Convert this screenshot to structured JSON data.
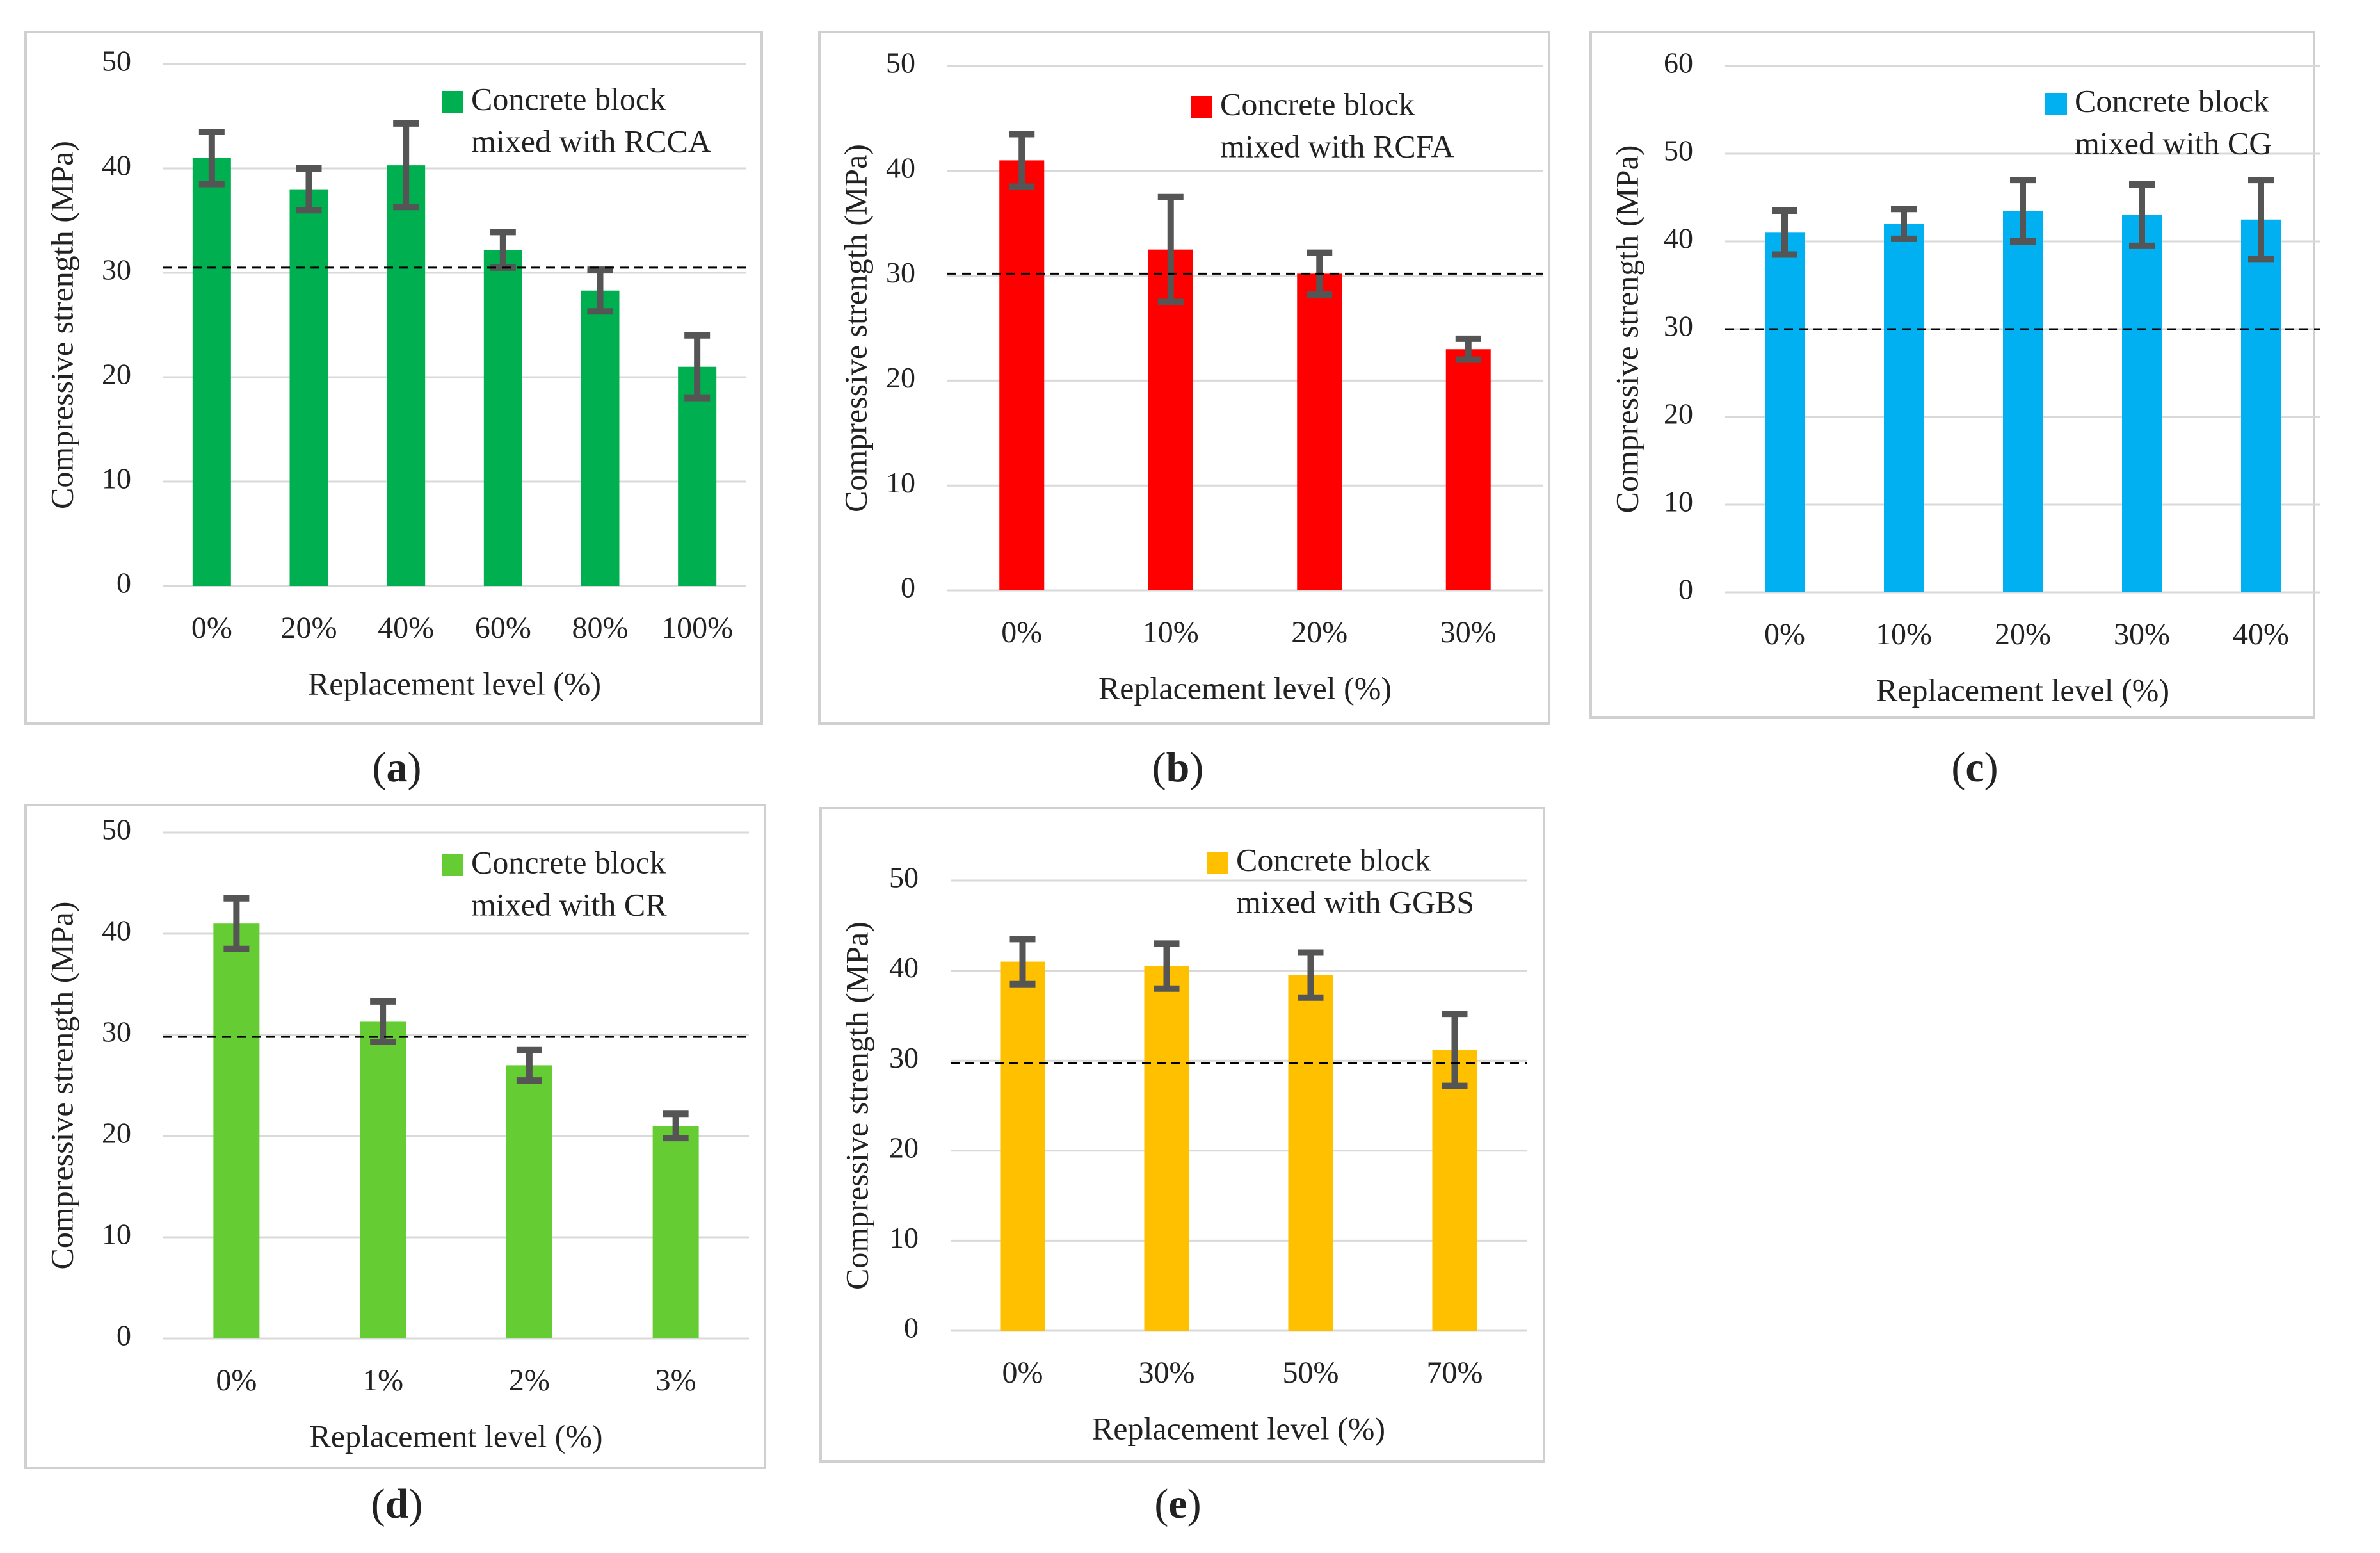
{
  "chart_data": [
    {
      "type": "bar",
      "panel_label": "a",
      "categories": [
        "0%",
        "20%",
        "40%",
        "60%",
        "80%",
        "100%"
      ],
      "values": [
        41,
        38,
        40.3,
        32.2,
        28.3,
        21
      ],
      "errors": [
        2.5,
        2,
        4,
        1.7,
        2,
        3
      ],
      "threshold": 30.5,
      "legend": [
        "Concrete block",
        "mixed with RCCA"
      ],
      "xlabel": "Replacement level (%)",
      "ylabel": "Compressive strength (MPa)",
      "ylim": [
        0,
        50
      ],
      "yticks": [
        0,
        10,
        20,
        30,
        40,
        50
      ],
      "color": "#00b050",
      "grid": true,
      "legend_position": "top-right"
    },
    {
      "type": "bar",
      "panel_label": "b",
      "categories": [
        "0%",
        "10%",
        "20%",
        "30%"
      ],
      "values": [
        41,
        32.5,
        30.2,
        23
      ],
      "errors": [
        2.5,
        5,
        2,
        1
      ],
      "threshold": 30.2,
      "legend": [
        "Concrete block",
        "mixed with RCFA"
      ],
      "xlabel": "Replacement level (%)",
      "ylabel": "Compressive strength (MPa)",
      "ylim": [
        0,
        50
      ],
      "yticks": [
        0,
        10,
        20,
        30,
        40,
        50
      ],
      "color": "#ff0000",
      "grid": true,
      "legend_position": "top-right"
    },
    {
      "type": "bar",
      "panel_label": "c",
      "categories": [
        "0%",
        "10%",
        "20%",
        "30%",
        "40%"
      ],
      "values": [
        41,
        42,
        43.5,
        43,
        42.5
      ],
      "errors": [
        2.5,
        1.7,
        3.5,
        3.5,
        4.5
      ],
      "threshold": 30,
      "legend": [
        "Concrete block",
        "mixed with CG"
      ],
      "xlabel": "Replacement level (%)",
      "ylabel": "Compressive strength (MPa)",
      "ylim": [
        0,
        60
      ],
      "yticks": [
        0,
        10,
        20,
        30,
        40,
        50,
        60
      ],
      "color": "#00b0f0",
      "grid": true,
      "legend_position": "top-right"
    },
    {
      "type": "bar",
      "panel_label": "d",
      "categories": [
        "0%",
        "1%",
        "2%",
        "3%"
      ],
      "values": [
        41,
        31.3,
        27,
        21
      ],
      "errors": [
        2.5,
        2,
        1.5,
        1.2
      ],
      "threshold": 29.8,
      "legend": [
        "Concrete block",
        "mixed with CR"
      ],
      "xlabel": "Replacement level (%)",
      "ylabel": "Compressive strength (MPa)",
      "ylim": [
        0,
        50
      ],
      "yticks": [
        0,
        10,
        20,
        30,
        40,
        50
      ],
      "color": "#66cc33",
      "grid": true,
      "legend_position": "top-right"
    },
    {
      "type": "bar",
      "panel_label": "e",
      "categories": [
        "0%",
        "30%",
        "50%",
        "70%"
      ],
      "values": [
        41,
        40.5,
        39.5,
        31.2
      ],
      "errors": [
        2.5,
        2.5,
        2.5,
        4
      ],
      "threshold": 29.7,
      "legend": [
        "Concrete block",
        "mixed with GGBS"
      ],
      "xlabel": "Replacement level (%)",
      "ylabel": "Compressive strength (MPa)",
      "ylim": [
        0,
        50
      ],
      "yticks": [
        0,
        10,
        20,
        30,
        40,
        50
      ],
      "color": "#ffc000",
      "grid": true,
      "legend_position": "top-right"
    }
  ]
}
